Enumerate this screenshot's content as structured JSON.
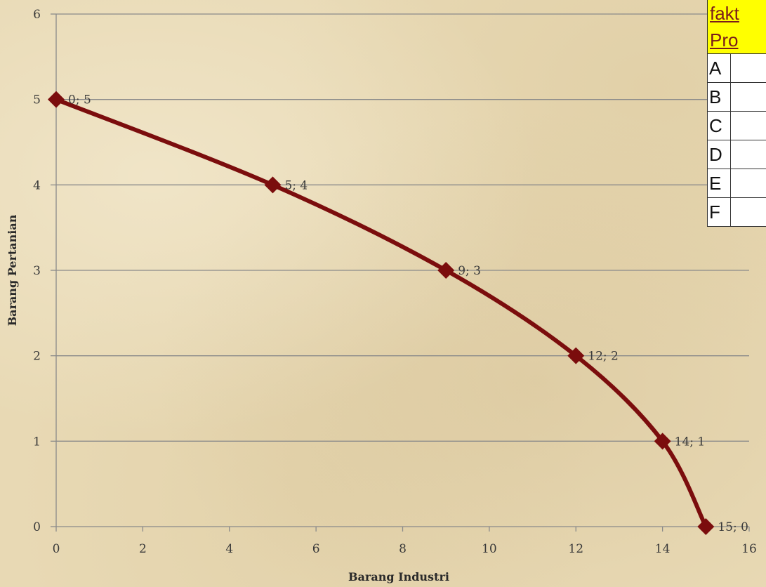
{
  "chart_data": {
    "type": "line",
    "xlabel": "Barang Industri",
    "ylabel": "Barang Pertanian",
    "xlim": [
      0,
      16
    ],
    "ylim": [
      0,
      6
    ],
    "x_ticks": [
      0,
      2,
      4,
      6,
      8,
      10,
      12,
      14,
      16
    ],
    "y_ticks": [
      0,
      1,
      2,
      3,
      4,
      5,
      6
    ],
    "grid": "horizontal",
    "series": [
      {
        "points": [
          {
            "x": 0,
            "y": 5,
            "label": "0; 5"
          },
          {
            "x": 5,
            "y": 4,
            "label": "5; 4"
          },
          {
            "x": 9,
            "y": 3,
            "label": "9; 3"
          },
          {
            "x": 12,
            "y": 2,
            "label": "12; 2"
          },
          {
            "x": 14,
            "y": 1,
            "label": "14; 1"
          },
          {
            "x": 15,
            "y": 0,
            "label": "15; 0"
          }
        ],
        "color": "#7b0d0d",
        "marker": "diamond"
      }
    ]
  },
  "table": {
    "header_line1": "fakt",
    "header_line2": "Pro",
    "rows": [
      "A",
      "B",
      "C",
      "D",
      "E",
      "F"
    ],
    "header_bg": "#ffff00",
    "header_text_color": "#7a1c1c"
  }
}
